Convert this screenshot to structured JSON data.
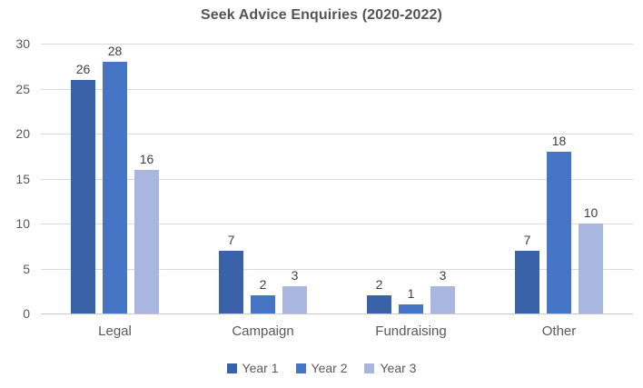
{
  "title": "Seek Advice Enquiries (2020-2022)",
  "chart_data": {
    "type": "bar",
    "title": "Seek Advice Enquiries (2020-2022)",
    "categories": [
      "Legal",
      "Campaign",
      "Fundraising",
      "Other"
    ],
    "series": [
      {
        "name": "Year 1",
        "color": "#3A62A8",
        "values": [
          26,
          7,
          2,
          7
        ]
      },
      {
        "name": "Year 2",
        "color": "#4675C5",
        "values": [
          28,
          2,
          1,
          18
        ]
      },
      {
        "name": "Year 3",
        "color": "#A8B6E0",
        "values": [
          16,
          3,
          3,
          10
        ]
      }
    ],
    "xlabel": "",
    "ylabel": "",
    "ylim": [
      0,
      30
    ],
    "yticks": [
      0,
      5,
      10,
      15,
      20,
      25,
      30
    ],
    "grid": true,
    "data_labels": true,
    "legend_position": "bottom"
  },
  "colors": {
    "background": "#FFFFFF",
    "title_text": "#545454",
    "axis_text": "#595959",
    "data_label_text": "#404040",
    "gridline": "#D9D9D9",
    "axis_line": "#C8C8C8"
  }
}
